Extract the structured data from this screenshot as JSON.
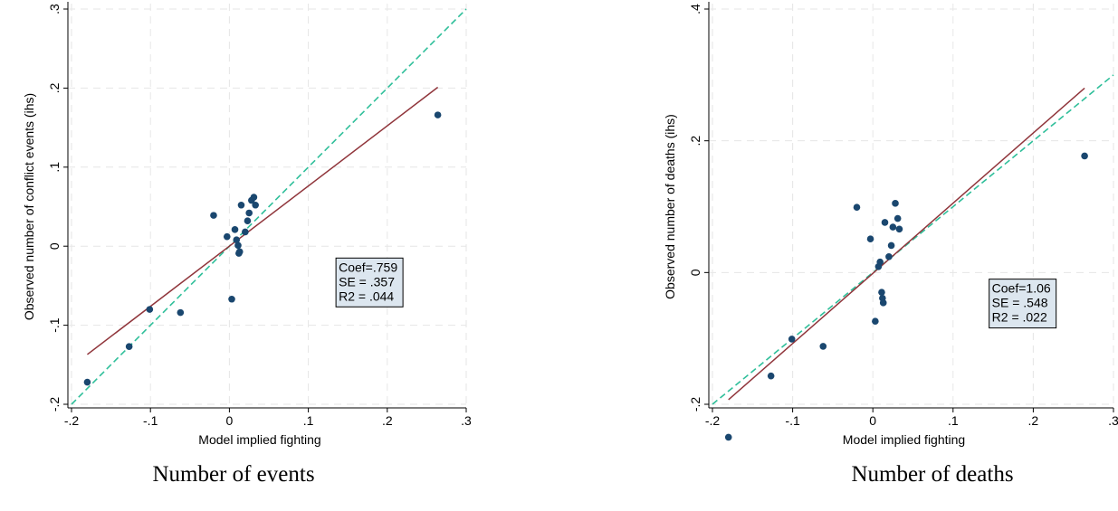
{
  "colors": {
    "points": "#1a476f",
    "fit_line": "#90353b",
    "reference_line": "#2fbf9a",
    "grid": "#e6e6e6",
    "stats_box_fill": "#dce6ef"
  },
  "chart_data": [
    {
      "type": "scatter",
      "caption": "Number of events",
      "xlabel": "Model implied fighting",
      "ylabel": "Observed number of conflict events (ihs)",
      "xlim": [
        -0.2,
        0.3
      ],
      "ylim": [
        -0.2,
        0.3
      ],
      "x_ticks": [
        -0.2,
        -0.1,
        0,
        0.1,
        0.2,
        0.3
      ],
      "x_tick_labels": [
        "-.2",
        "-.1",
        "0",
        ".1",
        ".2",
        ".3"
      ],
      "y_ticks": [
        -0.2,
        -0.1,
        0,
        0.1,
        0.2,
        0.3
      ],
      "y_tick_labels": [
        "-.2",
        "-.1",
        "0",
        ".1",
        ".2",
        ".3"
      ],
      "grid": true,
      "points": [
        {
          "x": -0.18,
          "y": -0.172
        },
        {
          "x": -0.127,
          "y": -0.127
        },
        {
          "x": -0.101,
          "y": -0.08
        },
        {
          "x": -0.062,
          "y": -0.084
        },
        {
          "x": -0.02,
          "y": 0.039
        },
        {
          "x": -0.003,
          "y": 0.012
        },
        {
          "x": 0.003,
          "y": -0.067
        },
        {
          "x": 0.007,
          "y": 0.021
        },
        {
          "x": 0.009,
          "y": 0.008
        },
        {
          "x": 0.011,
          "y": 0.001
        },
        {
          "x": 0.012,
          "y": -0.009
        },
        {
          "x": 0.013,
          "y": -0.007
        },
        {
          "x": 0.015,
          "y": 0.052
        },
        {
          "x": 0.02,
          "y": 0.018
        },
        {
          "x": 0.023,
          "y": 0.032
        },
        {
          "x": 0.025,
          "y": 0.042
        },
        {
          "x": 0.028,
          "y": 0.058
        },
        {
          "x": 0.031,
          "y": 0.062
        },
        {
          "x": 0.033,
          "y": 0.052
        },
        {
          "x": 0.264,
          "y": 0.166
        }
      ],
      "fit_line": {
        "x": [
          -0.18,
          0.264
        ],
        "y": [
          -0.137,
          0.201
        ]
      },
      "reference_line": {
        "x": [
          -0.2,
          0.3
        ],
        "y": [
          -0.2,
          0.3
        ]
      },
      "stats": {
        "coef": "Coef=.759",
        "se": "SE = .357",
        "r2": "R2 = .044"
      },
      "stats_box_anchor": {
        "x": 0.135,
        "y": -0.015
      }
    },
    {
      "type": "scatter",
      "caption": "Number of deaths",
      "xlabel": "Model implied fighting",
      "ylabel": "Observed number of deaths (ihs)",
      "xlim": [
        -0.2,
        0.3
      ],
      "ylim": [
        -0.2,
        0.4
      ],
      "x_ticks": [
        -0.2,
        -0.1,
        0,
        0.1,
        0.2,
        0.3
      ],
      "x_tick_labels": [
        "-.2",
        "-.1",
        "0",
        ".1",
        ".2",
        ".3"
      ],
      "y_ticks": [
        -0.2,
        0,
        0.2,
        0.4
      ],
      "y_tick_labels": [
        "-.2",
        "0",
        ".2",
        ".4"
      ],
      "grid": true,
      "points": [
        {
          "x": -0.18,
          "y": -0.25
        },
        {
          "x": -0.127,
          "y": -0.157
        },
        {
          "x": -0.101,
          "y": -0.101
        },
        {
          "x": -0.062,
          "y": -0.112
        },
        {
          "x": -0.02,
          "y": 0.099
        },
        {
          "x": -0.003,
          "y": 0.051
        },
        {
          "x": 0.003,
          "y": -0.074
        },
        {
          "x": 0.007,
          "y": 0.009
        },
        {
          "x": 0.009,
          "y": 0.016
        },
        {
          "x": 0.011,
          "y": -0.03
        },
        {
          "x": 0.012,
          "y": -0.039
        },
        {
          "x": 0.013,
          "y": -0.046
        },
        {
          "x": 0.015,
          "y": 0.076
        },
        {
          "x": 0.02,
          "y": 0.024
        },
        {
          "x": 0.023,
          "y": 0.041
        },
        {
          "x": 0.025,
          "y": 0.069
        },
        {
          "x": 0.028,
          "y": 0.105
        },
        {
          "x": 0.031,
          "y": 0.082
        },
        {
          "x": 0.033,
          "y": 0.066
        },
        {
          "x": 0.264,
          "y": 0.177
        }
      ],
      "fit_line": {
        "x": [
          -0.18,
          0.264
        ],
        "y": [
          -0.193,
          0.28
        ]
      },
      "reference_line": {
        "x": [
          -0.2,
          0.3
        ],
        "y": [
          -0.2,
          0.3
        ]
      },
      "stats": {
        "coef": "Coef=1.06",
        "se": "SE = .548",
        "r2": "R2 = .022"
      },
      "stats_box_anchor": {
        "x": 0.145,
        "y": -0.01
      }
    }
  ]
}
